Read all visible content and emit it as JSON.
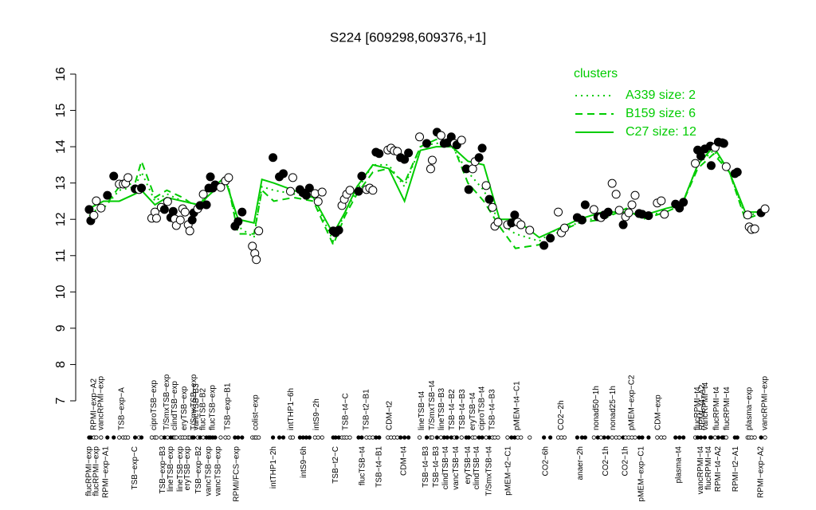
{
  "chart_data": {
    "type": "scatter",
    "title": "S224 [609298,609376,+1]",
    "ylim": [
      7,
      16
    ],
    "yticks": [
      7,
      8,
      9,
      10,
      11,
      12,
      13,
      14,
      15,
      16
    ],
    "xlim": [
      -5,
      875
    ],
    "points": {
      "x": [
        12,
        14,
        18,
        21,
        27,
        35,
        43,
        50,
        55,
        58,
        61,
        70,
        75,
        78,
        91,
        95,
        97,
        103,
        107,
        111,
        115,
        118,
        120,
        122,
        127,
        130,
        133,
        137,
        139,
        142,
        144,
        149,
        152,
        156,
        160,
        163,
        165,
        168,
        171,
        178,
        184,
        188,
        196,
        200,
        205,
        218,
        221,
        223,
        226,
        244,
        252,
        257,
        266,
        269,
        278,
        282,
        286,
        290,
        297,
        301,
        306,
        320,
        323,
        327,
        331,
        334,
        337,
        341,
        352,
        356,
        362,
        366,
        370,
        374,
        378,
        389,
        393,
        397,
        401,
        405,
        410,
        415,
        429,
        438,
        443,
        445,
        451,
        456,
        460,
        464,
        469,
        473,
        476,
        482,
        488,
        491,
        496,
        499,
        504,
        508,
        513,
        517,
        521,
        524,
        528,
        540,
        545,
        549,
        553,
        557,
        568,
        586,
        594,
        604,
        608,
        612,
        628,
        634,
        638,
        649,
        654,
        658,
        662,
        667,
        672,
        677,
        681,
        686,
        689,
        693,
        697,
        701,
        706,
        710,
        718,
        729,
        734,
        738,
        752,
        757,
        762,
        777,
        780,
        784,
        789,
        796,
        797,
        802,
        806,
        811,
        813,
        816,
        827,
        830,
        843,
        845,
        848,
        852,
        860,
        865
      ],
      "y": [
        12.27,
        11.96,
        12.11,
        12.51,
        12.31,
        12.66,
        13.19,
        12.97,
        12.97,
        12.99,
        13.15,
        12.84,
        12.82,
        12.86,
        12.03,
        12.2,
        12.03,
        12.33,
        12.27,
        12.49,
        12.05,
        12.22,
        12.01,
        11.83,
        11.98,
        12.29,
        12.2,
        11.85,
        11.68,
        11.98,
        12.18,
        12.29,
        12.38,
        12.69,
        12.4,
        12.86,
        13.17,
        12.86,
        12.95,
        12.88,
        13.06,
        13.15,
        11.81,
        11.94,
        12.2,
        11.26,
        11.06,
        10.89,
        11.68,
        13.7,
        13.17,
        13.26,
        12.77,
        13.15,
        12.82,
        12.73,
        12.66,
        12.86,
        12.71,
        12.49,
        12.75,
        11.68,
        11.63,
        11.7,
        12.38,
        12.55,
        12.69,
        12.8,
        12.77,
        13.19,
        12.82,
        12.86,
        12.8,
        13.85,
        13.81,
        13.91,
        13.96,
        13.89,
        13.87,
        13.7,
        13.65,
        13.83,
        14.27,
        14.09,
        13.39,
        13.63,
        14.4,
        14.31,
        14.09,
        14.11,
        14.27,
        14.09,
        14.05,
        14.18,
        13.39,
        12.82,
        13.39,
        13.59,
        13.7,
        13.96,
        12.93,
        12.55,
        12.33,
        11.81,
        11.92,
        11.85,
        11.9,
        12.12,
        11.92,
        11.85,
        11.7,
        11.28,
        11.48,
        12.2,
        11.63,
        11.76,
        12.05,
        11.98,
        12.4,
        12.27,
        12.07,
        12.05,
        12.12,
        12.2,
        12.99,
        12.69,
        12.25,
        11.85,
        12.07,
        12.18,
        12.4,
        12.66,
        12.16,
        12.14,
        12.1,
        12.45,
        12.51,
        12.14,
        12.42,
        12.31,
        12.47,
        13.54,
        13.91,
        13.74,
        13.94,
        14.02,
        13.48,
        13.98,
        14.13,
        14.11,
        14.09,
        13.45,
        13.26,
        13.3,
        12.12,
        11.79,
        11.72,
        11.74,
        12.18,
        12.29
      ],
      "filled": [
        true,
        true,
        false,
        false,
        false,
        true,
        true,
        false,
        false,
        false,
        false,
        true,
        false,
        true,
        false,
        false,
        false,
        false,
        true,
        false,
        true,
        true,
        false,
        false,
        false,
        false,
        false,
        false,
        false,
        true,
        true,
        false,
        true,
        false,
        true,
        true,
        true,
        true,
        true,
        false,
        false,
        false,
        true,
        true,
        true,
        false,
        false,
        false,
        false,
        true,
        true,
        true,
        false,
        false,
        true,
        true,
        true,
        true,
        false,
        false,
        false,
        true,
        true,
        true,
        false,
        false,
        false,
        false,
        true,
        true,
        false,
        false,
        false,
        true,
        true,
        false,
        false,
        false,
        false,
        true,
        true,
        true,
        false,
        true,
        false,
        false,
        true,
        false,
        true,
        true,
        true,
        false,
        true,
        false,
        true,
        true,
        false,
        false,
        true,
        true,
        false,
        true,
        false,
        false,
        false,
        false,
        true,
        true,
        false,
        false,
        false,
        true,
        true,
        false,
        false,
        false,
        true,
        true,
        true,
        false,
        true,
        false,
        true,
        true,
        false,
        false,
        false,
        true,
        false,
        false,
        false,
        false,
        true,
        true,
        true,
        false,
        false,
        false,
        true,
        true,
        true,
        false,
        true,
        true,
        true,
        true,
        true,
        false,
        true,
        true,
        true,
        false,
        true,
        true,
        false,
        false,
        false,
        false,
        true,
        false
      ]
    },
    "series": [
      {
        "name": "A339 size: 2",
        "color": "#00cc00",
        "dash": "dotted",
        "x": [
          12,
          30,
          50,
          70,
          78,
          95,
          110,
          130,
          150,
          170,
          185,
          200,
          220,
          230,
          245,
          270,
          295,
          320,
          335,
          350,
          370,
          390,
          410,
          430,
          450,
          470,
          490,
          510,
          530,
          550,
          580,
          600,
          630,
          660,
          690,
          710,
          740,
          760,
          780,
          800,
          820,
          840,
          865
        ],
        "values": [
          12.2,
          12.3,
          12.8,
          12.9,
          13.3,
          12.5,
          12.7,
          12.5,
          12.4,
          12.9,
          13.1,
          11.8,
          11.5,
          12.9,
          12.8,
          12.7,
          12.6,
          11.4,
          12.2,
          12.8,
          13.5,
          13.5,
          12.9,
          14.0,
          14.1,
          14.0,
          13.3,
          12.8,
          11.9,
          11.6,
          11.4,
          11.7,
          11.9,
          12.1,
          12.2,
          12.1,
          12.2,
          12.4,
          13.5,
          13.9,
          13.3,
          12.1,
          12.2
        ]
      },
      {
        "name": "B159 size: 6",
        "color": "#00cc00",
        "dash": "dashed",
        "x": [
          12,
          30,
          50,
          70,
          78,
          95,
          110,
          130,
          150,
          170,
          185,
          200,
          220,
          230,
          245,
          270,
          295,
          320,
          335,
          350,
          370,
          390,
          410,
          430,
          450,
          470,
          490,
          510,
          530,
          550,
          580,
          600,
          630,
          660,
          690,
          710,
          740,
          760,
          780,
          800,
          820,
          840,
          865
        ],
        "values": [
          12.1,
          12.3,
          12.9,
          13.0,
          13.6,
          12.6,
          12.8,
          12.6,
          12.3,
          12.9,
          13.2,
          11.6,
          11.6,
          12.8,
          12.5,
          12.6,
          12.5,
          11.3,
          12.1,
          12.7,
          13.3,
          13.4,
          13.0,
          14.0,
          14.2,
          14.1,
          13.0,
          12.5,
          11.8,
          11.2,
          11.3,
          11.6,
          11.9,
          12.0,
          12.3,
          12.0,
          12.2,
          12.4,
          13.4,
          13.8,
          13.3,
          12.0,
          12.2
        ]
      },
      {
        "name": "C27 size: 12",
        "color": "#00cc00",
        "dash": "solid",
        "x": [
          12,
          30,
          50,
          70,
          78,
          95,
          110,
          130,
          150,
          170,
          185,
          200,
          220,
          230,
          245,
          270,
          295,
          320,
          335,
          350,
          370,
          390,
          410,
          430,
          450,
          470,
          490,
          510,
          530,
          550,
          580,
          600,
          630,
          660,
          690,
          710,
          740,
          760,
          780,
          800,
          820,
          840,
          865
        ],
        "values": [
          12.3,
          12.5,
          12.5,
          12.7,
          12.8,
          12.4,
          12.6,
          12.5,
          12.4,
          12.8,
          13.0,
          12.0,
          11.9,
          13.1,
          13.0,
          12.8,
          12.6,
          11.6,
          12.2,
          12.9,
          13.5,
          13.4,
          12.5,
          13.9,
          14.0,
          14.0,
          13.6,
          13.5,
          12.0,
          12.0,
          11.5,
          11.7,
          12.0,
          12.2,
          12.2,
          12.1,
          12.3,
          12.4,
          13.5,
          14.0,
          13.3,
          12.2,
          12.2
        ]
      }
    ],
    "legend_title": "clusters",
    "legend": "topright",
    "top_labels": {
      "x": [
        18,
        27,
        53,
        94,
        110,
        120,
        132,
        144,
        147,
        156,
        168,
        187,
        222,
        267,
        299,
        336,
        362,
        391,
        432,
        445,
        457,
        470,
        483,
        496,
        508,
        521,
        552,
        608,
        652,
        673,
        697,
        730,
        780,
        786,
        790,
        804,
        817,
        845,
        865
      ],
      "labels": [
        "RPMI−exp−A2",
        "vancRPMI−exp",
        "TSB−exp−A",
        "ciproTSB−exp",
        "T/SmxTSB−exp",
        "clindTSB−exp",
        "eryTSB−exp",
        "T/SmxTSB−exp",
        "vancTSB−B3",
        "flucTSB−B2",
        "flucTSB−exp",
        "TSB−exp−B1",
        "colist−exp",
        "intTHP1−6h",
        "intS9−2h",
        "TSB−t4−C",
        "TSB−t2−B1",
        "CDM−t2",
        "lineTSB−t4",
        "T/SmxTSB−t4",
        "lineTSB−B3",
        "TSB−t4−B2",
        "TSB−t4−B3",
        "eryTSB−t4",
        "ciproTSB−t4",
        "TSB−t4−B3",
        "pMEM−t4−C1",
        "CO2−2h",
        "nonad50−1h",
        "nonad25−1h",
        "pMEM−exp−C2",
        "CDM−exp",
        "flucRPMI−t4",
        "RPMI−t4−A2",
        "vancRPMI−t4",
        "flucRPMI−t4",
        "flucRPMI−t4",
        "plasma−exp",
        "vancRPMI−exp"
      ]
    },
    "bottom_labels": {
      "x": [
        12,
        21,
        33,
        70,
        105,
        115,
        127,
        136,
        150,
        163,
        175,
        198,
        245,
        283,
        323,
        357,
        378,
        409,
        437,
        450,
        462,
        475,
        490,
        501,
        517,
        541,
        588,
        632,
        664,
        689,
        709,
        756,
        784,
        794,
        806,
        828,
        860
      ],
      "labels": [
        "flucRPMI−exp",
        "flucRPMI−exp",
        "RPMI−exp−A1",
        "TSB−exp−C",
        "TSB−exp−B3",
        "lineTSB−exp",
        "lineTSB−exp",
        "eryTSB−exp",
        "TSB−exp−B2",
        "vancTSB−exp",
        "vancTSB−exp",
        "RPMI/FCS−exp",
        "intTHP1−2h",
        "intS9−6h",
        "TSB−t2−C",
        "flucTSB−t4",
        "TSB−t4−B1",
        "CDM−t4",
        "TSB−t4−B3",
        "TSB−t4−B3",
        "clindTSB−t4",
        "vancTSB−t4",
        "eryTSB−t4",
        "clindTSB−t4",
        "T/SmxTSB−t4",
        "pMEM−t2−C1",
        "CO2−6h",
        "anaer−2h",
        "CO2−1h",
        "CO2−1h",
        "pMEM−exp−C1",
        "plasma−t4",
        "vancRPMI−t4",
        "flucRPMI−t4",
        "RPMI−t4−A2",
        "RPMI−t2−A1",
        "RPMI−exp−A2"
      ]
    }
  }
}
